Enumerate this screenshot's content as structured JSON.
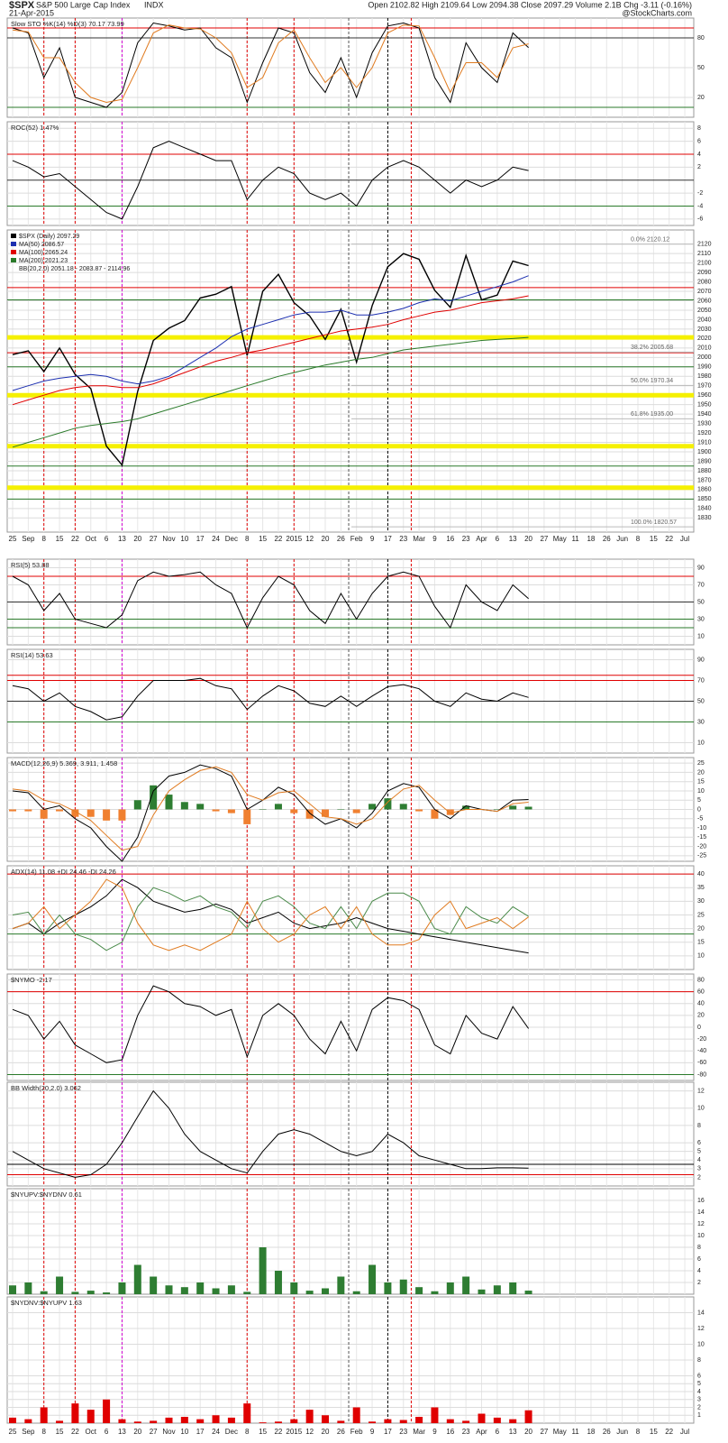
{
  "header": {
    "symbol": "$SPX",
    "name": "S&P 500 Large Cap Index",
    "exchange": "INDX",
    "date": "21-Apr-2015",
    "quote": "Open 2102.82 High 2109.64 Low 2094.38 Close 2097.29 Volume 2.1B Chg -3.11 (-0.16%)",
    "source": "@StockCharts.com"
  },
  "x_axis": {
    "labels": [
      "25",
      "Sep",
      "8",
      "15",
      "22",
      "Oct",
      "6",
      "13",
      "20",
      "27",
      "Nov",
      "10",
      "17",
      "24",
      "Dec",
      "8",
      "15",
      "22",
      "2015",
      "12",
      "20",
      "26",
      "Feb",
      "9",
      "17",
      "23",
      "Mar",
      "9",
      "16",
      "23",
      "Apr",
      "6",
      "13",
      "20",
      "27",
      "May",
      "11",
      "18",
      "26",
      "Jun",
      "8",
      "15",
      "22",
      "Jul"
    ]
  },
  "chart_data": [
    {
      "type": "line",
      "title": "Slow STO %K(14) %D(3) 70.17 73.99",
      "ylim": [
        0,
        100
      ],
      "yticks": [
        20,
        50,
        80
      ],
      "grid": true,
      "hlines": [
        {
          "value": 90,
          "color": "#e00000"
        },
        {
          "value": 80,
          "color": "#333333"
        },
        {
          "value": 10,
          "color": "#2a7a2a"
        }
      ],
      "series": [
        {
          "color": "#000000",
          "values": [
            90,
            85,
            40,
            70,
            20,
            15,
            10,
            25,
            75,
            95,
            92,
            88,
            90,
            70,
            60,
            15,
            55,
            90,
            85,
            45,
            25,
            60,
            20,
            65,
            92,
            95,
            90,
            40,
            15,
            75,
            50,
            35,
            85,
            70.17
          ]
        },
        {
          "color": "#e07b20",
          "values": [
            88,
            86,
            60,
            60,
            35,
            20,
            15,
            18,
            50,
            85,
            93,
            90,
            89,
            80,
            65,
            30,
            40,
            75,
            88,
            60,
            35,
            50,
            30,
            50,
            85,
            93,
            92,
            60,
            25,
            55,
            55,
            40,
            70,
            73.99
          ]
        }
      ]
    },
    {
      "type": "line",
      "title": "ROC(52) 1.47%",
      "ylim": [
        -7,
        9
      ],
      "yticks": [
        -6,
        -4,
        -2,
        2,
        4,
        6,
        8
      ],
      "grid": true,
      "hlines": [
        {
          "value": 4,
          "color": "#e00000"
        },
        {
          "value": 0,
          "color": "#333333"
        },
        {
          "value": -4,
          "color": "#2a7a2a"
        }
      ],
      "series": [
        {
          "color": "#000000",
          "values": [
            3,
            2,
            0.5,
            1,
            -1,
            -3,
            -5,
            -6,
            -1,
            5,
            6,
            5,
            4,
            3,
            3,
            -3,
            0,
            2,
            1,
            -2,
            -3,
            -2,
            -4,
            0,
            2,
            3,
            2,
            0,
            -2,
            0,
            -1,
            0,
            2,
            1.47
          ]
        }
      ]
    },
    {
      "type": "line",
      "ylim": [
        1815,
        2135
      ],
      "yticks": [
        1830,
        1840,
        1850,
        1860,
        1870,
        1880,
        1890,
        1900,
        1910,
        1920,
        1930,
        1940,
        1950,
        1960,
        1970,
        1980,
        1990,
        2000,
        2010,
        2020,
        2030,
        2040,
        2050,
        2060,
        2070,
        2080,
        2090,
        2100,
        2110,
        2120
      ],
      "grid": true,
      "note": "BB(20,2.0) 2051.18 - 2083.87 - 2114.96",
      "hlines": [
        {
          "value": 2074,
          "color": "#e00000"
        },
        {
          "value": 2061,
          "color": "#2a7a2a"
        },
        {
          "value": 2021.23,
          "color": "#f5f000",
          "style": "band"
        },
        {
          "value": 2005,
          "color": "#e00000"
        },
        {
          "value": 1990,
          "color": "#2a7a2a"
        },
        {
          "value": 1960,
          "color": "#f5f000",
          "style": "band"
        },
        {
          "value": 1906,
          "color": "#f5f000",
          "style": "band"
        },
        {
          "value": 1885,
          "color": "#2a7a2a"
        },
        {
          "value": 1862,
          "color": "#f5f000",
          "style": "band"
        },
        {
          "value": 1850,
          "color": "#2a7a2a"
        }
      ],
      "annotations": [
        {
          "label": "0.0% 2120.12",
          "value": 2120.12
        },
        {
          "label": "38.2% 2005.68",
          "value": 2005.68
        },
        {
          "label": "50.0% 1970.34",
          "value": 1970.34
        },
        {
          "label": "61.8% 1935.00",
          "value": 1935
        },
        {
          "label": "100.0% 1820.57",
          "value": 1820.57
        }
      ],
      "series": [
        {
          "name": "$SPX (Daily) 2097.29",
          "color": "#000000",
          "values": [
            2003,
            2007,
            1985,
            2010,
            1982,
            1967,
            1906,
            1886,
            1964,
            2018,
            2031,
            2039,
            2063,
            2067,
            2075,
            2002,
            2070,
            2088,
            2058,
            2044,
            2019,
            2051,
            1995,
            2055,
            2096,
            2110,
            2104,
            2071,
            2053,
            2108,
            2061,
            2066,
            2102,
            2097.29
          ]
        },
        {
          "name": "MA(50) 2086.57",
          "color": "#1c2fb0",
          "values": [
            1965,
            1970,
            1975,
            1978,
            1980,
            1982,
            1980,
            1975,
            1972,
            1975,
            1980,
            1990,
            2000,
            2010,
            2022,
            2030,
            2035,
            2040,
            2045,
            2048,
            2048,
            2050,
            2045,
            2045,
            2048,
            2052,
            2058,
            2062,
            2060,
            2065,
            2070,
            2075,
            2080,
            2086.57
          ]
        },
        {
          "name": "MA(100) 2065.24",
          "color": "#e00000",
          "values": [
            1950,
            1955,
            1960,
            1965,
            1968,
            1970,
            1970,
            1968,
            1968,
            1972,
            1978,
            1984,
            1990,
            1996,
            2000,
            2005,
            2008,
            2012,
            2016,
            2020,
            2024,
            2028,
            2030,
            2032,
            2035,
            2040,
            2044,
            2048,
            2050,
            2054,
            2058,
            2060,
            2062,
            2065.24
          ]
        },
        {
          "name": "MA(200) 2021.23",
          "color": "#2a7a2a",
          "values": [
            1905,
            1910,
            1915,
            1920,
            1925,
            1928,
            1930,
            1932,
            1935,
            1940,
            1945,
            1950,
            1955,
            1960,
            1965,
            1970,
            1975,
            1980,
            1984,
            1988,
            1992,
            1995,
            1998,
            2000,
            2004,
            2008,
            2010,
            2012,
            2014,
            2016,
            2018,
            2019,
            2020,
            2021.23
          ]
        }
      ]
    },
    {
      "type": "line",
      "title": "RSI(5) 53.88",
      "ylim": [
        0,
        100
      ],
      "yticks": [
        10,
        30,
        50,
        70,
        90
      ],
      "grid": true,
      "hlines": [
        {
          "value": 80,
          "color": "#e00000"
        },
        {
          "value": 50,
          "color": "#333333"
        },
        {
          "value": 30,
          "color": "#2a7a2a"
        },
        {
          "value": 20,
          "color": "#2a7a2a"
        }
      ],
      "series": [
        {
          "color": "#000000",
          "values": [
            80,
            70,
            40,
            60,
            30,
            25,
            20,
            35,
            75,
            85,
            80,
            82,
            85,
            70,
            60,
            20,
            55,
            80,
            70,
            40,
            25,
            60,
            30,
            60,
            80,
            85,
            80,
            45,
            20,
            70,
            50,
            40,
            70,
            53.88
          ]
        }
      ]
    },
    {
      "type": "line",
      "title": "RSI(14) 53.63",
      "ylim": [
        0,
        100
      ],
      "yticks": [
        10,
        30,
        50,
        70,
        90
      ],
      "grid": true,
      "hlines": [
        {
          "value": 75,
          "color": "#e00000"
        },
        {
          "value": 70,
          "color": "#e00000"
        },
        {
          "value": 50,
          "color": "#333333"
        },
        {
          "value": 30,
          "color": "#2a7a2a"
        }
      ],
      "series": [
        {
          "color": "#000000",
          "values": [
            65,
            62,
            50,
            58,
            45,
            40,
            32,
            35,
            55,
            70,
            70,
            70,
            72,
            65,
            62,
            42,
            55,
            65,
            60,
            48,
            45,
            55,
            45,
            55,
            64,
            66,
            62,
            50,
            45,
            58,
            52,
            50,
            58,
            53.63
          ]
        }
      ]
    },
    {
      "type": "line",
      "title": "MACD(12,26,9) 5.369, 3.911, 1.458",
      "ylim": [
        -28,
        28
      ],
      "yticks": [
        -25,
        -20,
        -15,
        -10,
        -5,
        0,
        5,
        10,
        15,
        20,
        25
      ],
      "grid": true,
      "hlines": [],
      "series": [
        {
          "style": "bar",
          "color": "#2e7d32",
          "negative_color": "#f08030",
          "values": [
            -1,
            -1,
            -5,
            -1,
            -4,
            -4,
            -6,
            -6,
            5,
            13,
            8,
            4,
            3,
            -1,
            -2,
            -8,
            0,
            3,
            -2,
            -5,
            -4,
            0,
            -2,
            3,
            6,
            3,
            -1,
            -5,
            -3,
            2,
            0,
            0,
            2,
            1.458
          ]
        },
        {
          "color": "#000000",
          "values": [
            10,
            9,
            0,
            2,
            -5,
            -10,
            -20,
            -28,
            -15,
            10,
            18,
            20,
            24,
            22,
            18,
            0,
            5,
            12,
            8,
            -2,
            -8,
            -5,
            -10,
            -2,
            10,
            14,
            12,
            0,
            -5,
            2,
            0,
            -1,
            5,
            5.369
          ]
        },
        {
          "color": "#e07b20",
          "values": [
            11,
            10,
            5,
            3,
            -1,
            -6,
            -14,
            -22,
            -20,
            -3,
            10,
            16,
            21,
            23,
            20,
            8,
            5,
            9,
            10,
            3,
            -4,
            -5,
            -8,
            -5,
            4,
            11,
            13,
            5,
            -2,
            0,
            0,
            -1,
            3,
            3.911
          ]
        }
      ]
    },
    {
      "type": "line",
      "title": "ADX(14) 11.08 +DI 24.46 -DI 24.26",
      "ylim": [
        5,
        43
      ],
      "yticks": [
        10,
        15,
        20,
        25,
        30,
        35,
        40
      ],
      "grid": true,
      "hlines": [
        {
          "value": 40,
          "color": "#e00000"
        },
        {
          "value": 18,
          "color": "#2a7a2a"
        }
      ],
      "series": [
        {
          "color": "#000000",
          "values": [
            20,
            22,
            18,
            22,
            25,
            28,
            32,
            38,
            35,
            30,
            28,
            26,
            27,
            29,
            27,
            22,
            24,
            26,
            22,
            20,
            21,
            22,
            24,
            22,
            20,
            19,
            18,
            17,
            16,
            15,
            14,
            13,
            12,
            11.08
          ]
        },
        {
          "color": "#4a8a4a",
          "values": [
            25,
            26,
            18,
            25,
            18,
            16,
            12,
            15,
            28,
            35,
            33,
            30,
            32,
            28,
            26,
            20,
            30,
            32,
            28,
            22,
            20,
            28,
            20,
            30,
            33,
            33,
            30,
            20,
            18,
            28,
            24,
            22,
            28,
            24.46
          ]
        },
        {
          "color": "#e07b20",
          "values": [
            20,
            22,
            28,
            20,
            25,
            30,
            38,
            35,
            22,
            14,
            12,
            14,
            12,
            15,
            18,
            30,
            20,
            15,
            18,
            25,
            28,
            20,
            28,
            18,
            14,
            14,
            16,
            25,
            30,
            20,
            22,
            24,
            20,
            24.26
          ]
        }
      ]
    },
    {
      "type": "line",
      "title": "$NYMO -2.17",
      "ylim": [
        -90,
        90
      ],
      "yticks": [
        -80,
        -60,
        -40,
        -20,
        0,
        20,
        40,
        60,
        80
      ],
      "grid": true,
      "hlines": [
        {
          "value": 60,
          "color": "#e00000"
        },
        {
          "value": -80,
          "color": "#2a7a2a"
        }
      ],
      "series": [
        {
          "color": "#000000",
          "values": [
            30,
            20,
            -20,
            10,
            -30,
            -45,
            -60,
            -55,
            20,
            70,
            60,
            40,
            35,
            20,
            30,
            -50,
            20,
            40,
            20,
            -20,
            -45,
            10,
            -40,
            30,
            50,
            45,
            30,
            -30,
            -45,
            20,
            -10,
            -20,
            35,
            -2.17
          ]
        }
      ]
    },
    {
      "type": "line",
      "title": "BB Width(20,2.0) 3.062",
      "ylim": [
        1,
        13
      ],
      "yticks": [
        2,
        3,
        4,
        5,
        6,
        8,
        10,
        12
      ],
      "grid": true,
      "hlines": [
        {
          "value": 3.5,
          "color": "#000000"
        },
        {
          "value": 2.3,
          "color": "#e00000"
        }
      ],
      "series": [
        {
          "color": "#000000",
          "values": [
            5,
            4,
            3,
            2.5,
            2,
            2.3,
            3.5,
            6,
            9,
            12,
            10,
            7,
            5,
            4,
            3,
            2.5,
            5,
            7,
            7.5,
            7,
            6,
            5,
            4.5,
            5,
            7,
            6,
            4.5,
            4,
            3.5,
            3,
            3,
            3.1,
            3.1,
            3.062
          ]
        }
      ]
    },
    {
      "type": "bar",
      "title": "$NYUPV:$NYDNV 0.61",
      "ylim": [
        0,
        18
      ],
      "yticks": [
        2,
        4,
        6,
        8,
        10,
        12,
        14,
        16
      ],
      "grid": true,
      "color": "#2e7d32",
      "values": [
        1.5,
        2,
        0.5,
        3,
        0.4,
        0.6,
        0.3,
        2,
        5,
        3,
        1.5,
        1.2,
        2,
        1,
        1.5,
        0.4,
        8,
        4,
        2,
        0.6,
        1,
        3,
        0.5,
        5,
        2,
        2.5,
        1.2,
        0.5,
        2,
        3,
        0.8,
        1.5,
        2,
        0.61
      ]
    },
    {
      "type": "bar",
      "title": "$NYDNV:$NYUPV 1.63",
      "ylim": [
        0,
        16
      ],
      "yticks": [
        1,
        2,
        3,
        4,
        5,
        6,
        8,
        10,
        12,
        14
      ],
      "grid": true,
      "color": "#e00000",
      "values": [
        0.7,
        0.5,
        2,
        0.3,
        2.5,
        1.7,
        3,
        0.5,
        0.2,
        0.3,
        0.7,
        0.8,
        0.5,
        1,
        0.7,
        2.5,
        0.1,
        0.2,
        0.5,
        1.7,
        1,
        0.3,
        2,
        0.2,
        0.5,
        0.4,
        0.8,
        2,
        0.5,
        0.3,
        1.2,
        0.7,
        0.5,
        1.63
      ]
    }
  ]
}
